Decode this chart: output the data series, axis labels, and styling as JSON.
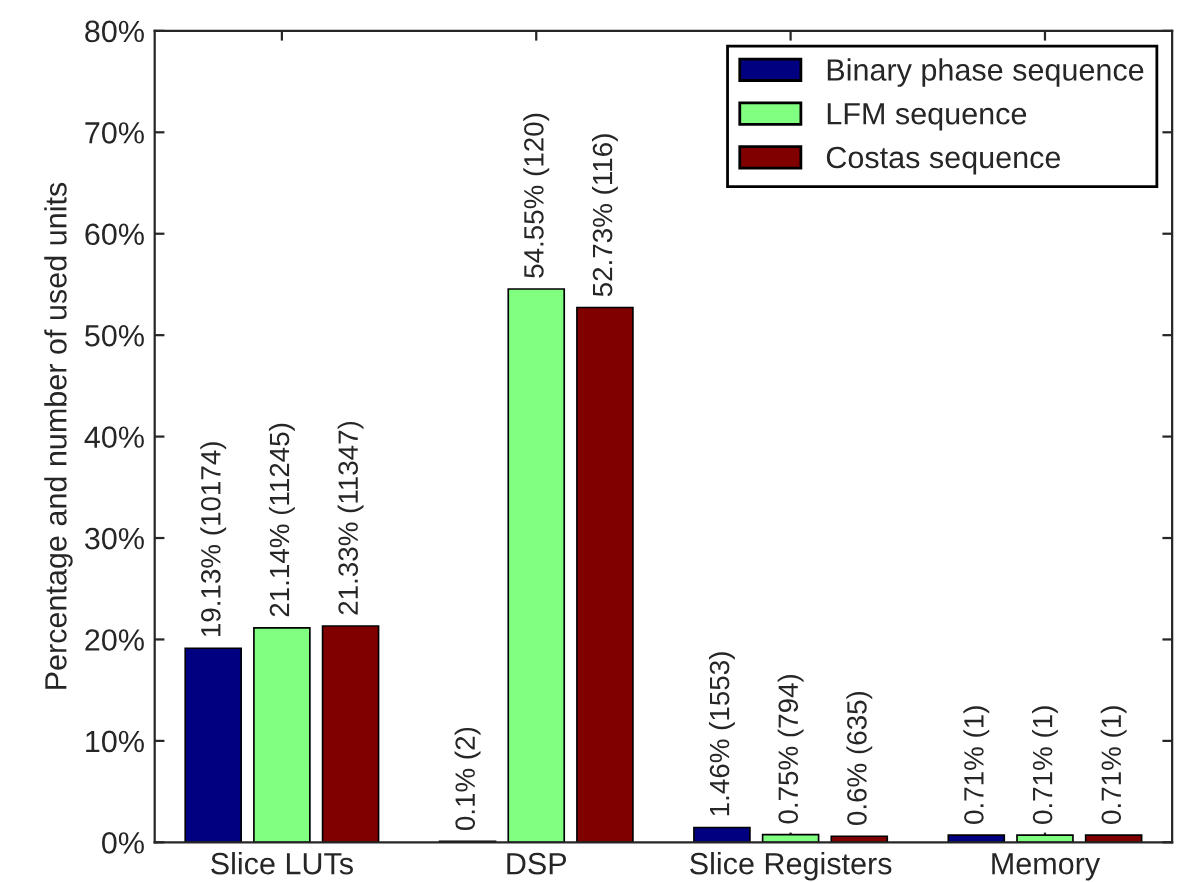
{
  "chart_data": {
    "type": "bar",
    "ylabel": "Percentage and number of used units",
    "categories": [
      "Slice LUTs",
      "DSP",
      "Slice Registers",
      "Memory"
    ],
    "series": [
      {
        "name": "Binary phase sequence",
        "color": "#000080",
        "values": [
          19.13,
          0.1,
          1.46,
          0.71
        ],
        "value_labels": [
          "19.13% (10174)",
          "0.1% (2)",
          "1.46% (1553)",
          "0.71% (1)"
        ]
      },
      {
        "name": "LFM sequence",
        "color": "#80ff80",
        "values": [
          21.14,
          54.55,
          0.75,
          0.71
        ],
        "value_labels": [
          "21.14% (11245)",
          "54.55% (120)",
          "0.75% (794)",
          "0.71% (1)"
        ]
      },
      {
        "name": "Costas sequence",
        "color": "#800000",
        "values": [
          21.33,
          52.73,
          0.6,
          0.71
        ],
        "value_labels": [
          "21.33% (11347)",
          "52.73% (116)",
          "0.6% (635)",
          "0.71% (1)"
        ]
      }
    ],
    "ylim": [
      0,
      80
    ],
    "yticks": [
      {
        "value": 0,
        "label": "0%"
      },
      {
        "value": 10,
        "label": "10%"
      },
      {
        "value": 20,
        "label": "20%"
      },
      {
        "value": 30,
        "label": "30%"
      },
      {
        "value": 40,
        "label": "40%"
      },
      {
        "value": 50,
        "label": "50%"
      },
      {
        "value": 60,
        "label": "60%"
      },
      {
        "value": 70,
        "label": "70%"
      },
      {
        "value": 80,
        "label": "80%"
      }
    ],
    "legend": "top right",
    "grid": false
  }
}
